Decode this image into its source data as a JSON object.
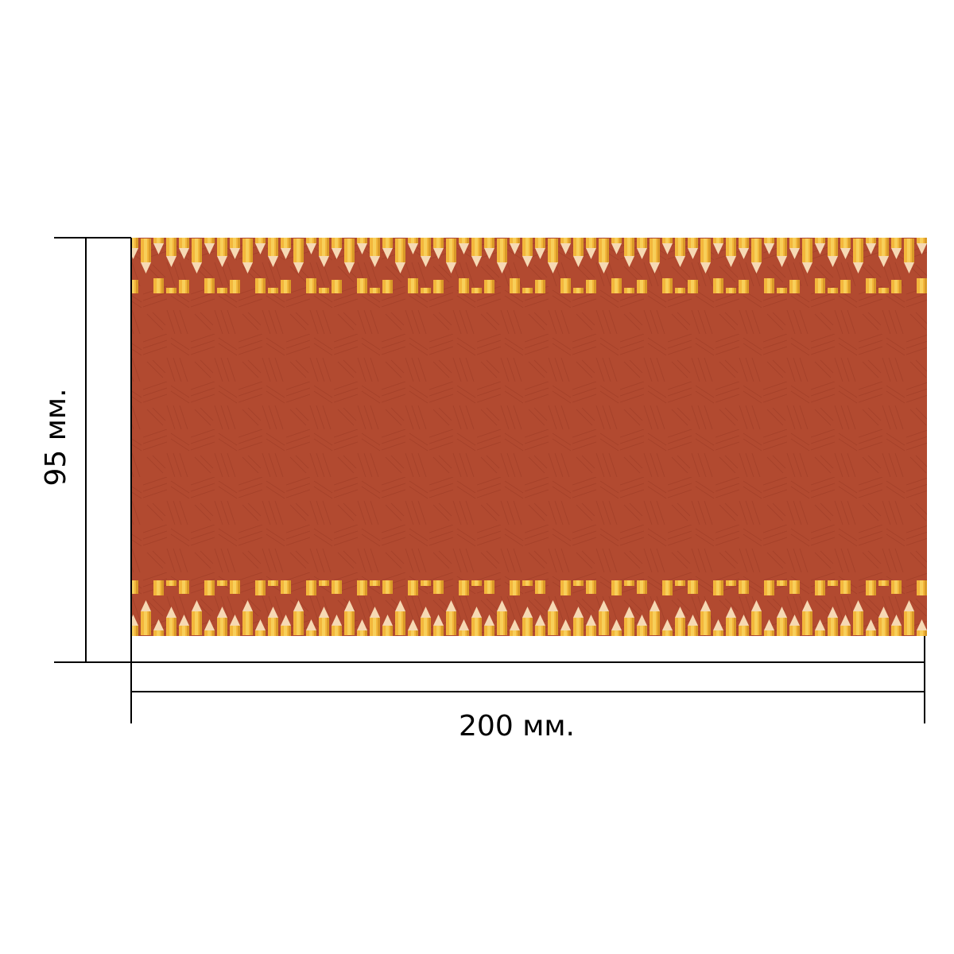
{
  "width_label": "200 мм.",
  "height_label": "95 мм."
}
